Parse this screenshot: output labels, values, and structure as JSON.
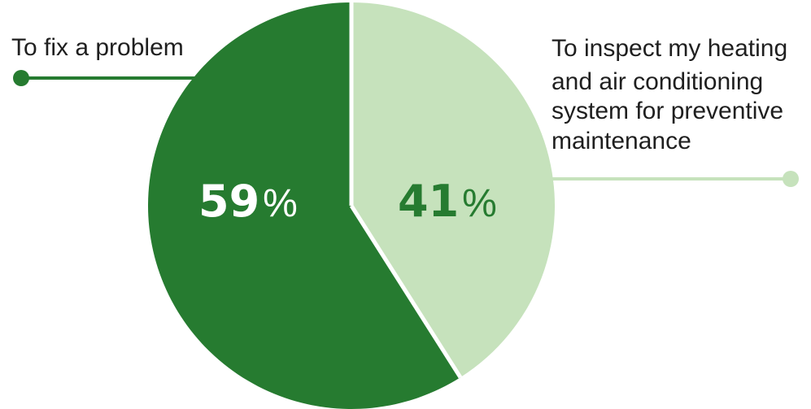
{
  "chart_data": {
    "type": "pie",
    "categories": [
      "To fix a problem",
      "To inspect my heating and air conditioning system for preventive maintenance"
    ],
    "values": [
      59,
      41
    ],
    "value_labels": [
      {
        "number": "59",
        "unit": "%"
      },
      {
        "number": "41",
        "unit": "%"
      }
    ],
    "label_lines": [
      [
        "To fix a problem"
      ],
      [
        "To inspect my heating",
        "and air conditioning",
        "system for preventive",
        "maintenance"
      ]
    ],
    "colors": [
      "#267b30",
      "#c6e2bc"
    ],
    "value_label_colors": [
      "#ffffff",
      "#267b30"
    ],
    "leader_colors": [
      "#267b30",
      "#c6e2bc"
    ],
    "start_angle": "12 o'clock",
    "direction": "counterclockwise for first slice"
  }
}
